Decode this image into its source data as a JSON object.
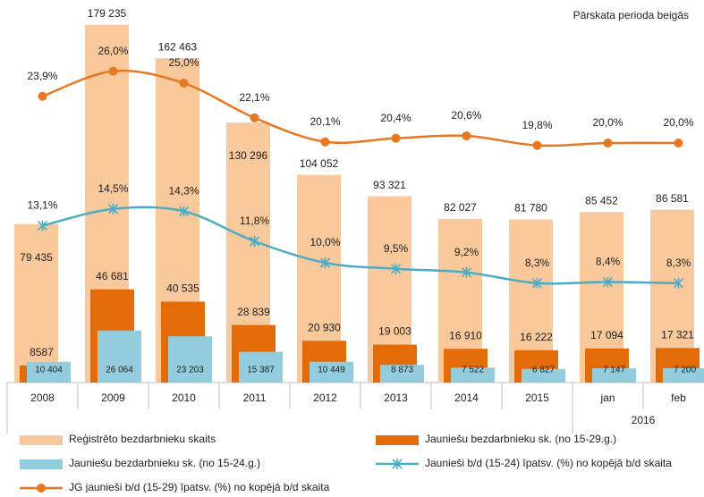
{
  "chart_data": {
    "type": "bar",
    "annotation": "Pārskata perioda beigās",
    "categories": [
      "2008",
      "2009",
      "2010",
      "2011",
      "2012",
      "2013",
      "2014",
      "2015",
      "jan",
      "feb"
    ],
    "category_groups": [
      {
        "label": "2016",
        "start": 8,
        "end": 9
      }
    ],
    "ylim": [
      0,
      180000
    ],
    "y2lim": [
      0,
      30
    ],
    "series": [
      {
        "name": "Reģistrēto bezdarbnieku skaits",
        "type": "bar",
        "color": "#f9c89b",
        "values": [
          79435,
          179235,
          162463,
          130296,
          104052,
          93321,
          82027,
          81780,
          85452,
          86581
        ],
        "value_labels": [
          "79 435",
          "179 235",
          "162 463",
          "130 296",
          "104 052",
          "93 321",
          "82 027",
          "81 780",
          "85 452",
          "86 581"
        ]
      },
      {
        "name": "Jauniešu bezdarbnieku sk. (no 15-29.g.)",
        "type": "bar",
        "color": "#e36c09",
        "values": [
          8587,
          46681,
          40535,
          28839,
          20930,
          19003,
          16910,
          16222,
          17094,
          17321
        ],
        "value_labels": [
          "8587",
          "46 681",
          "40 535",
          "28 839",
          "20 930",
          "19 003",
          "16 910",
          "16 222",
          "17 094",
          "17 321"
        ]
      },
      {
        "name": "Jauniešu bezdarbnieku sk. (no 15-24.g.)",
        "type": "bar",
        "color": "#93cddd",
        "values": [
          10404,
          26064,
          23203,
          15387,
          10449,
          8873,
          7522,
          6827,
          7147,
          7200
        ],
        "value_labels": [
          "10 404",
          "26 064",
          "23 203",
          "15 387",
          "10 449",
          "8 873",
          "7 522",
          "6 827",
          "7 147",
          "7 200"
        ]
      },
      {
        "name": "Jaunieši b/d (15-24) īpatsv. (%) no kopējā b/d skaita",
        "type": "line",
        "axis": "y2",
        "color": "#4bacc6",
        "marker": "asterisk",
        "values": [
          13.1,
          14.5,
          14.3,
          11.8,
          10.0,
          9.5,
          9.2,
          8.3,
          8.4,
          8.3
        ],
        "value_labels": [
          "13,1%",
          "14,5%",
          "14,3%",
          "11,8%",
          "10,0%",
          "9,5%",
          "9,2%",
          "8,3%",
          "8,4%",
          "8,3%"
        ]
      },
      {
        "name": "JG jaunieši b/d (15-29) īpatsv. (%) no kopējā b/d skaita",
        "type": "line",
        "axis": "y2",
        "color": "#e87722",
        "marker": "circle",
        "values": [
          23.9,
          26.0,
          25.0,
          22.1,
          20.1,
          20.4,
          20.6,
          19.8,
          20.0,
          20.0
        ],
        "value_labels": [
          "23,9%",
          "26,0%",
          "25,0%",
          "22,1%",
          "20,1%",
          "20,4%",
          "20,6%",
          "19,8%",
          "20,0%",
          "20,0%"
        ]
      }
    ]
  }
}
